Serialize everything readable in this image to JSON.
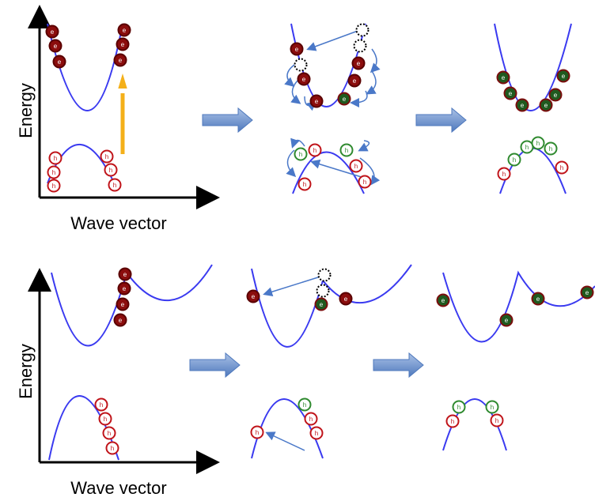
{
  "panels": [
    {
      "y_label": "Energy",
      "x_label": "Wave vector"
    },
    {
      "y_label": "Energy",
      "x_label": "Wave vector"
    }
  ],
  "particle_labels": {
    "electron": "e",
    "hole": "h"
  }
}
